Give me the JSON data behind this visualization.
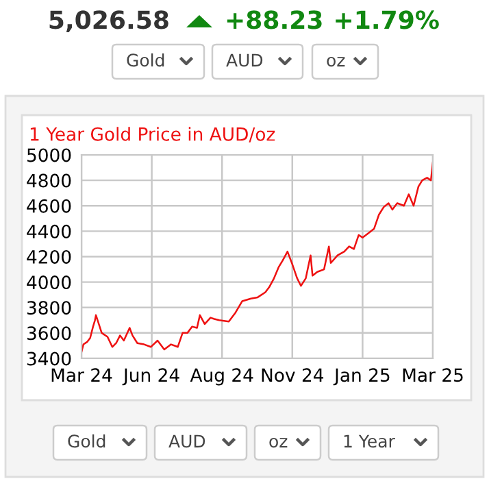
{
  "chart_data": {
    "type": "line",
    "title": "1 Year Gold Price in AUD/oz",
    "annotations": [
      "5,026.58",
      "+88.23",
      "+1.79%",
      "Gold",
      "AUD",
      "oz",
      "Gold",
      "AUD",
      "oz",
      "1 Year"
    ],
    "series": [
      {
        "color": "#ee1111",
        "x": [
          "2024-03-29",
          "2024-03-31",
          "2024-04-04",
          "2024-04-07",
          "2024-04-10",
          "2024-04-12",
          "2024-04-13",
          "2024-04-16",
          "2024-04-19",
          "2024-04-25",
          "2024-04-30",
          "2024-05-04",
          "2024-05-08",
          "2024-05-12",
          "2024-05-18",
          "2024-05-21",
          "2024-05-26",
          "2024-06-02",
          "2024-06-09",
          "2024-06-16",
          "2024-06-23",
          "2024-06-30",
          "2024-07-07",
          "2024-07-12",
          "2024-07-17",
          "2024-07-22",
          "2024-07-27",
          "2024-07-30",
          "2024-08-04",
          "2024-08-10",
          "2024-08-14",
          "2024-08-19",
          "2024-08-29",
          "2024-09-05",
          "2024-09-12",
          "2024-09-21",
          "2024-09-28",
          "2024-10-06",
          "2024-10-10",
          "2024-10-15",
          "2024-10-20",
          "2024-10-24",
          "2024-10-29",
          "2024-11-03",
          "2024-11-08",
          "2024-11-12",
          "2024-11-17",
          "2024-11-22",
          "2024-11-24",
          "2024-11-29",
          "2024-12-06",
          "2024-12-11",
          "2024-12-13",
          "2024-12-20",
          "2024-12-27",
          "2025-01-01",
          "2025-01-06",
          "2025-01-11",
          "2025-01-15",
          "2025-01-22",
          "2025-01-27",
          "2025-02-01",
          "2025-02-06",
          "2025-02-11",
          "2025-02-15",
          "2025-02-20",
          "2025-02-27",
          "2025-03-04",
          "2025-03-09",
          "2025-03-14",
          "2025-03-18",
          "2025-03-23",
          "2025-03-27",
          "2025-03-29"
        ],
        "values": [
          3450,
          3510,
          3530,
          3560,
          3650,
          3700,
          3740,
          3670,
          3600,
          3570,
          3490,
          3520,
          3580,
          3540,
          3640,
          3580,
          3520,
          3510,
          3490,
          3540,
          3470,
          3510,
          3490,
          3600,
          3600,
          3650,
          3640,
          3740,
          3670,
          3720,
          3710,
          3700,
          3690,
          3760,
          3850,
          3870,
          3880,
          3920,
          3960,
          4030,
          4120,
          4170,
          4240,
          4140,
          4030,
          3970,
          4030,
          4210,
          4050,
          4080,
          4100,
          4280,
          4150,
          4210,
          4240,
          4280,
          4260,
          4370,
          4350,
          4390,
          4420,
          4530,
          4590,
          4620,
          4570,
          4620,
          4600,
          4690,
          4600,
          4750,
          4800,
          4820,
          4800,
          4940
        ]
      }
    ],
    "xlim": [
      "2024-03-29",
      "2025-03-29"
    ],
    "xticks": [
      {
        "value": "2024-03-29",
        "label": "Mar 24"
      },
      {
        "value": "2024-06-10",
        "label": "Jun 24"
      },
      {
        "value": "2024-08-22",
        "label": "Aug 24"
      },
      {
        "value": "2024-11-03",
        "label": "Nov 24"
      },
      {
        "value": "2025-01-15",
        "label": "Jan 25"
      },
      {
        "value": "2025-03-29",
        "label": "Mar 25"
      }
    ],
    "ylim": [
      3400,
      5000
    ],
    "yticks": [
      3400,
      3600,
      3800,
      4000,
      4200,
      4400,
      4600,
      4800,
      5000
    ],
    "grid": true
  }
}
